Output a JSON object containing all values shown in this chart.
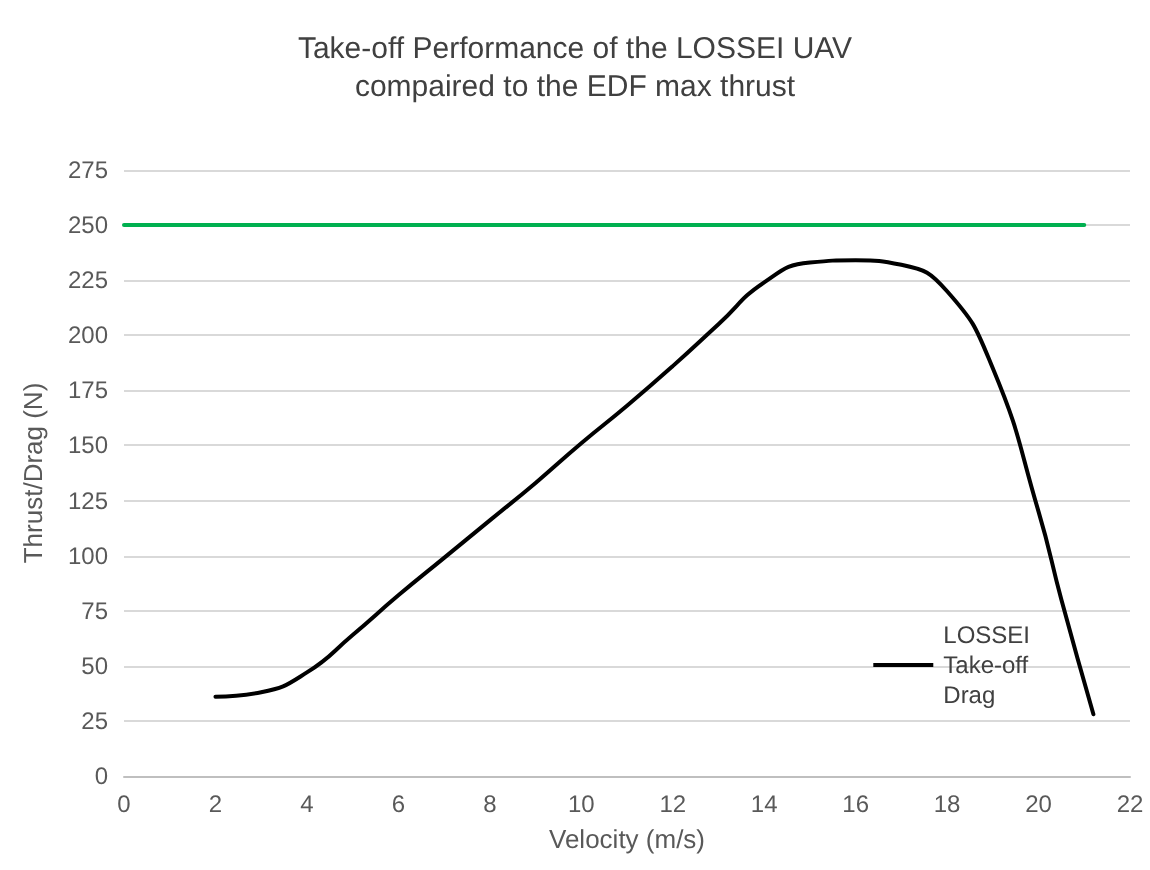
{
  "chart_data": {
    "type": "line",
    "title": "Take-off Performance of the LOSSEI UAV\ncompaired to the EDF max thrust",
    "xlabel": "Velocity (m/s)",
    "ylabel": "Thrust/Drag (N)",
    "series": [
      {
        "color": "#00b050",
        "x": [
          0,
          21
        ],
        "values": [
          250,
          250
        ]
      },
      {
        "name": "LOSSEI\nTake-off\nDrag",
        "color": "#000000",
        "x": [
          2,
          3,
          4,
          5,
          6,
          7,
          8,
          9,
          10,
          11,
          12,
          13,
          14,
          15,
          16,
          17,
          18,
          19,
          20,
          20.5,
          21.2
        ],
        "values": [
          36,
          38,
          47,
          64,
          82,
          99,
          116,
          133,
          151,
          168,
          186,
          205,
          224,
          233,
          234,
          232,
          220,
          185,
          120,
          80,
          28
        ]
      }
    ],
    "xlim": [
      0,
      22
    ],
    "xticks": [
      0,
      2,
      4,
      6,
      8,
      10,
      12,
      14,
      16,
      18,
      20,
      22
    ],
    "ylim": [
      0,
      275
    ],
    "yticks": [
      0,
      25,
      50,
      75,
      100,
      125,
      150,
      175,
      200,
      225,
      250,
      275
    ],
    "grid": "y",
    "legend": "bottom right",
    "marker": "none",
    "line_style": "solid"
  }
}
